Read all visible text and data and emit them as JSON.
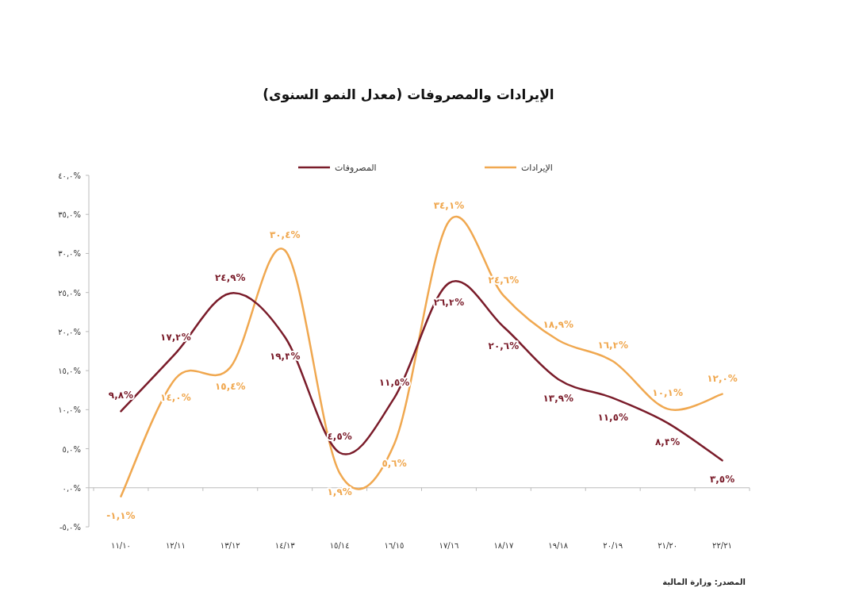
{
  "chart_data": {
    "type": "line",
    "title": "الإيرادات والمصروفات (معدل النمو السنوى)",
    "categories": [
      "١١/١٠",
      "١٢/١١",
      "١٣/١٢",
      "١٤/١٣",
      "١٥/١٤",
      "١٦/١٥",
      "١٧/١٦",
      "١٨/١٧",
      "١٩/١٨",
      "٢٠/١٩",
      "٢١/٢٠",
      "٢٢/٢١"
    ],
    "series": [
      {
        "name": "الإيرادات",
        "color": "#f0a850",
        "values": [
          -1.1,
          14.0,
          15.4,
          30.4,
          1.9,
          5.6,
          34.1,
          24.6,
          18.9,
          16.2,
          10.1,
          12.0
        ],
        "value_labels": [
          "-١,١%",
          "١٤,٠%",
          "١٥,٤%",
          "٣٠,٤%",
          "١,٩%",
          "٥,٦%",
          "٣٤,١%",
          "٢٤,٦%",
          "١٨,٩%",
          "١٦,٢%",
          "١٠,١%",
          "١٢,٠%"
        ]
      },
      {
        "name": "المصروفات",
        "color": "#7a1c2a",
        "values": [
          9.8,
          17.2,
          24.9,
          19.3,
          4.5,
          11.5,
          26.2,
          20.6,
          13.9,
          11.5,
          8.3,
          3.5
        ],
        "value_labels": [
          "٩,٨%",
          "١٧,٢%",
          "٢٤,٩%",
          "١٩,٣%",
          "٤,٥%",
          "١١,٥%",
          "٢٦,٢%",
          "٢٠,٦%",
          "١٣,٩%",
          "١١,٥%",
          "٨,٣%",
          "٣,٥%"
        ]
      }
    ],
    "ylim": [
      -5,
      40
    ],
    "yticks": [
      {
        "value": -5,
        "label": "-٥,٠%"
      },
      {
        "value": 0,
        "label": "٠,٠%"
      },
      {
        "value": 5,
        "label": "٥,٠%"
      },
      {
        "value": 10,
        "label": "١٠,٠%"
      },
      {
        "value": 15,
        "label": "١٥,٠%"
      },
      {
        "value": 20,
        "label": "٢٠,٠%"
      },
      {
        "value": 25,
        "label": "٢٥,٠%"
      },
      {
        "value": 30,
        "label": "٣٠,٠%"
      },
      {
        "value": 35,
        "label": "٣٥,٠%"
      },
      {
        "value": 40,
        "label": "٤٠,٠%"
      }
    ],
    "legend": "top",
    "annotations": [
      "المصدر: وزارة المالية"
    ]
  }
}
